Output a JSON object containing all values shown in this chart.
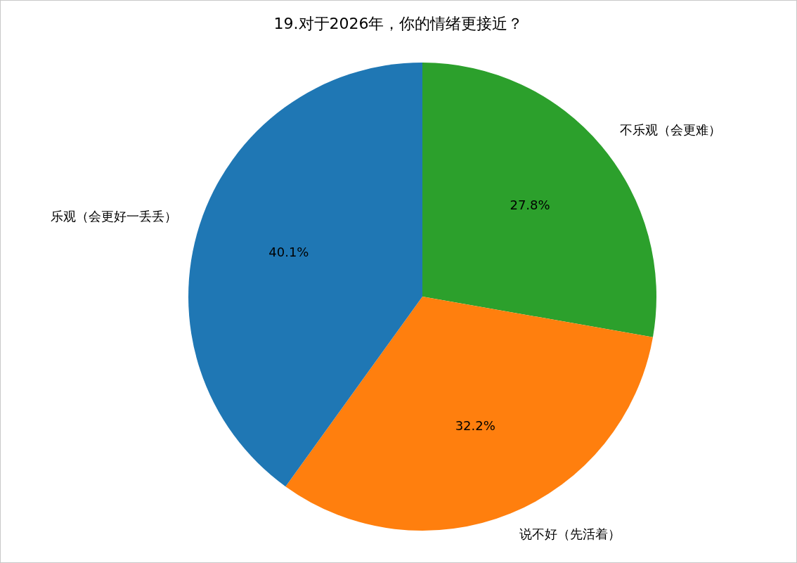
{
  "chart_data": {
    "type": "pie",
    "title": "19.对于2026年，你的情绪更接近？",
    "categories": [
      "乐观（会更好一丢丢）",
      "说不好（先活着）",
      "不乐观（会更难）"
    ],
    "values": [
      40.1,
      32.2,
      27.8
    ],
    "colors": [
      "#1f77b4",
      "#ff7f0e",
      "#2ca02c"
    ],
    "value_labels": [
      "40.1%",
      "32.2%",
      "27.8%"
    ],
    "legend": false
  }
}
